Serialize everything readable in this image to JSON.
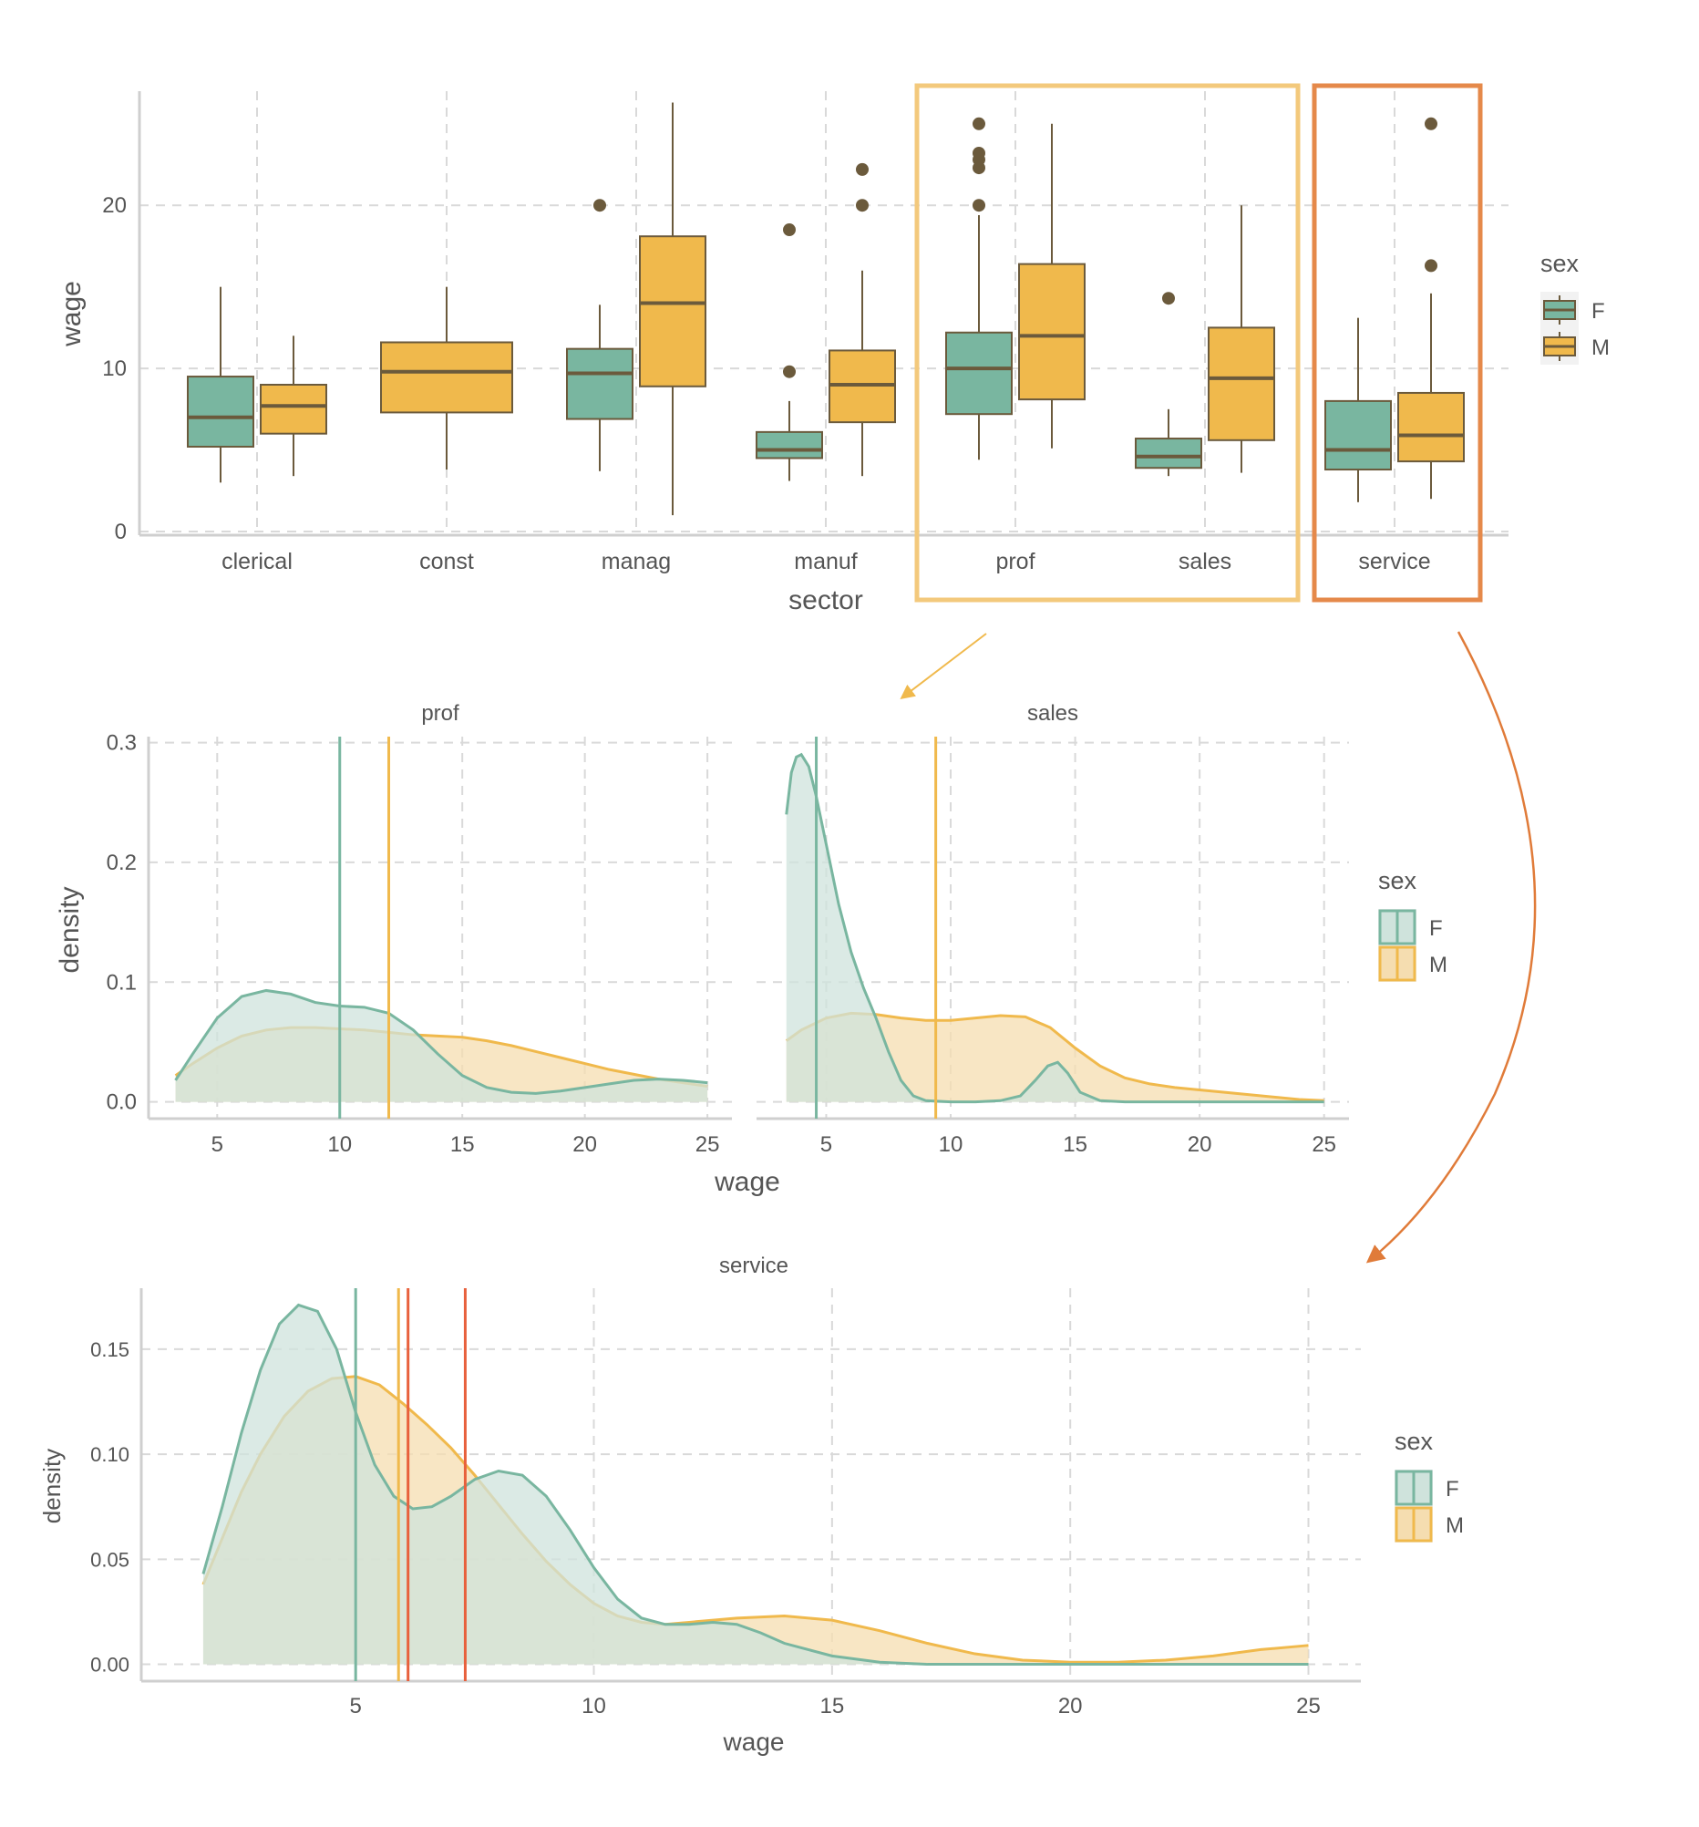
{
  "colors": {
    "F": "#79b6a0",
    "M": "#f0b94c",
    "box_stroke": "#6b5a3c",
    "outlier": "#6b5a3c",
    "grid": "#d9d9d9",
    "axis": "#cfcfcf",
    "text": "#555555",
    "highlight_light": "#f3c97c",
    "highlight_dark": "#e5894a",
    "arrow_light": "#f0b94c",
    "arrow_dark": "#e07b39",
    "service_mean_line": "#e8603c",
    "density_F_fill": "#cfe3dc",
    "density_M_fill": "#f5ddb0"
  },
  "chart_data": [
    {
      "id": "boxplot",
      "type": "box",
      "xlabel": "sector",
      "ylabel": "wage",
      "ylim": [
        0,
        27
      ],
      "yticks": [
        0,
        10,
        20
      ],
      "legend": {
        "title": "sex",
        "entries": [
          "F",
          "M"
        ],
        "position": "right"
      },
      "grid": true,
      "categories": [
        "clerical",
        "const",
        "manag",
        "manuf",
        "prof",
        "sales",
        "service"
      ],
      "boxes": [
        {
          "sector": "clerical",
          "sex": "F",
          "min": 3.0,
          "q1": 5.2,
          "median": 7.0,
          "q3": 9.5,
          "max": 15.0,
          "outliers": []
        },
        {
          "sector": "clerical",
          "sex": "M",
          "min": 3.4,
          "q1": 6.0,
          "median": 7.7,
          "q3": 9.0,
          "max": 12.0,
          "outliers": []
        },
        {
          "sector": "const",
          "sex": "M",
          "min": 3.8,
          "q1": 7.3,
          "median": 9.8,
          "q3": 11.6,
          "max": 15.0,
          "outliers": []
        },
        {
          "sector": "manag",
          "sex": "F",
          "min": 3.7,
          "q1": 6.9,
          "median": 9.7,
          "q3": 11.2,
          "max": 13.9,
          "outliers": [
            20.0
          ]
        },
        {
          "sector": "manag",
          "sex": "M",
          "min": 1.0,
          "q1": 8.9,
          "median": 14.0,
          "q3": 18.1,
          "max": 26.3,
          "outliers": []
        },
        {
          "sector": "manuf",
          "sex": "F",
          "min": 3.1,
          "q1": 4.5,
          "median": 5.0,
          "q3": 6.1,
          "max": 8.0,
          "outliers": [
            9.8,
            18.5
          ]
        },
        {
          "sector": "manuf",
          "sex": "M",
          "min": 3.4,
          "q1": 6.7,
          "median": 9.0,
          "q3": 11.1,
          "max": 16.0,
          "outliers": [
            20.0,
            22.2
          ]
        },
        {
          "sector": "prof",
          "sex": "F",
          "min": 4.4,
          "q1": 7.2,
          "median": 10.0,
          "q3": 12.2,
          "max": 19.4,
          "outliers": [
            20.0,
            22.3,
            22.8,
            23.2,
            25.0
          ]
        },
        {
          "sector": "prof",
          "sex": "M",
          "min": 5.1,
          "q1": 8.1,
          "median": 12.0,
          "q3": 16.4,
          "max": 25.0,
          "outliers": []
        },
        {
          "sector": "sales",
          "sex": "F",
          "min": 3.4,
          "q1": 3.9,
          "median": 4.6,
          "q3": 5.7,
          "max": 7.5,
          "outliers": [
            14.3
          ]
        },
        {
          "sector": "sales",
          "sex": "M",
          "min": 3.6,
          "q1": 5.6,
          "median": 9.4,
          "q3": 12.5,
          "max": 20.0,
          "outliers": []
        },
        {
          "sector": "service",
          "sex": "F",
          "min": 1.8,
          "q1": 3.8,
          "median": 5.0,
          "q3": 8.0,
          "max": 13.1,
          "outliers": []
        },
        {
          "sector": "service",
          "sex": "M",
          "min": 2.0,
          "q1": 4.3,
          "median": 5.9,
          "q3": 8.5,
          "max": 14.6,
          "outliers": [
            16.3,
            25.0
          ]
        }
      ],
      "highlights": [
        {
          "sectors": [
            "prof",
            "sales"
          ],
          "color": "light"
        },
        {
          "sectors": [
            "service"
          ],
          "color": "dark"
        }
      ]
    },
    {
      "id": "density-prof-sales",
      "type": "area",
      "xlabel": "wage",
      "ylabel": "density",
      "xlim": [
        2.2,
        26
      ],
      "ylim": [
        -0.014,
        0.305
      ],
      "xticks": [
        5,
        10,
        15,
        20,
        25
      ],
      "yticks": [
        0.0,
        0.1,
        0.2,
        0.3
      ],
      "ytick_labels": [
        "0.0",
        "0.1",
        "0.2",
        "0.3"
      ],
      "legend": {
        "title": "sex",
        "entries": [
          "F",
          "M"
        ],
        "position": "right"
      },
      "grid": true,
      "panels": [
        {
          "title": "prof",
          "series": [
            {
              "sex": "F",
              "x": [
                3.3,
                4,
                5,
                6,
                7,
                8,
                9,
                10,
                11,
                12,
                13,
                14,
                15,
                16,
                17,
                18,
                19,
                20,
                21,
                22,
                23,
                24,
                25
              ],
              "y": [
                0.018,
                0.04,
                0.07,
                0.088,
                0.093,
                0.09,
                0.083,
                0.08,
                0.079,
                0.074,
                0.06,
                0.04,
                0.022,
                0.012,
                0.008,
                0.007,
                0.009,
                0.012,
                0.015,
                0.018,
                0.019,
                0.018,
                0.016
              ]
            },
            {
              "sex": "M",
              "x": [
                3.3,
                4,
                5,
                6,
                7,
                8,
                9,
                10,
                11,
                12,
                13,
                14,
                15,
                16,
                17,
                18,
                19,
                20,
                21,
                22,
                23,
                24,
                25
              ],
              "y": [
                0.022,
                0.032,
                0.045,
                0.055,
                0.06,
                0.062,
                0.062,
                0.061,
                0.06,
                0.058,
                0.056,
                0.055,
                0.054,
                0.051,
                0.047,
                0.042,
                0.037,
                0.032,
                0.027,
                0.023,
                0.019,
                0.016,
                0.013
              ]
            }
          ],
          "vlines": [
            {
              "sex": "F",
              "x": 10.0
            },
            {
              "sex": "M",
              "x": 12.0
            }
          ]
        },
        {
          "title": "sales",
          "series": [
            {
              "sex": "F",
              "x": [
                3.4,
                3.6,
                3.8,
                4,
                4.3,
                4.6,
                5,
                5.5,
                6,
                6.5,
                7,
                7.5,
                8,
                8.5,
                9,
                10,
                11,
                12,
                12.8,
                13.4,
                13.9,
                14.3,
                14.7,
                15.2,
                16,
                17,
                25
              ],
              "y": [
                0.24,
                0.275,
                0.288,
                0.29,
                0.28,
                0.255,
                0.215,
                0.165,
                0.125,
                0.095,
                0.07,
                0.042,
                0.018,
                0.005,
                0.001,
                0,
                0,
                0.001,
                0.005,
                0.018,
                0.03,
                0.033,
                0.024,
                0.008,
                0.001,
                0,
                0
              ]
            },
            {
              "sex": "M",
              "x": [
                3.4,
                4,
                5,
                6,
                7,
                8,
                9,
                10,
                11,
                12,
                13,
                14,
                15,
                16,
                17,
                18,
                19,
                20,
                21,
                22,
                23,
                24,
                25
              ],
              "y": [
                0.051,
                0.06,
                0.07,
                0.074,
                0.073,
                0.07,
                0.068,
                0.068,
                0.07,
                0.072,
                0.071,
                0.062,
                0.045,
                0.03,
                0.02,
                0.015,
                0.012,
                0.01,
                0.008,
                0.006,
                0.004,
                0.002,
                0.001
              ]
            }
          ],
          "vlines": [
            {
              "sex": "F",
              "x": 4.6
            },
            {
              "sex": "M",
              "x": 9.4
            }
          ]
        }
      ]
    },
    {
      "id": "density-service",
      "type": "area",
      "title": "service",
      "xlabel": "wage",
      "ylabel": "density",
      "xlim": [
        0.5,
        26.1
      ],
      "ylim": [
        -0.008,
        0.179
      ],
      "xticks": [
        5,
        10,
        15,
        20,
        25
      ],
      "yticks": [
        0.0,
        0.05,
        0.1,
        0.15
      ],
      "ytick_labels": [
        "0.00",
        "0.05",
        "0.10",
        "0.15"
      ],
      "legend": {
        "title": "sex",
        "entries": [
          "F",
          "M"
        ],
        "position": "right"
      },
      "grid": true,
      "series": [
        {
          "sex": "F",
          "x": [
            1.8,
            2.2,
            2.6,
            3,
            3.4,
            3.8,
            4.2,
            4.6,
            5,
            5.4,
            5.8,
            6.2,
            6.6,
            7,
            7.5,
            8,
            8.5,
            9,
            9.5,
            10,
            10.5,
            11,
            11.5,
            12,
            12.5,
            13,
            13.5,
            14,
            15,
            16,
            17,
            18,
            20,
            22,
            25
          ],
          "y": [
            0.043,
            0.075,
            0.11,
            0.14,
            0.162,
            0.171,
            0.168,
            0.15,
            0.12,
            0.095,
            0.08,
            0.074,
            0.075,
            0.08,
            0.088,
            0.092,
            0.09,
            0.08,
            0.064,
            0.046,
            0.031,
            0.022,
            0.019,
            0.019,
            0.02,
            0.019,
            0.015,
            0.01,
            0.004,
            0.001,
            0,
            0,
            0,
            0,
            0
          ]
        },
        {
          "sex": "M",
          "x": [
            1.8,
            2.2,
            2.6,
            3,
            3.5,
            4,
            4.5,
            5,
            5.5,
            6,
            6.5,
            7,
            7.5,
            8,
            8.5,
            9,
            9.5,
            10,
            10.5,
            11,
            11.5,
            12,
            13,
            14,
            15,
            16,
            17,
            18,
            19,
            20,
            21,
            22,
            23,
            24,
            25
          ],
          "y": [
            0.038,
            0.06,
            0.082,
            0.1,
            0.118,
            0.13,
            0.136,
            0.137,
            0.133,
            0.124,
            0.114,
            0.103,
            0.09,
            0.076,
            0.062,
            0.049,
            0.038,
            0.029,
            0.023,
            0.02,
            0.019,
            0.02,
            0.022,
            0.023,
            0.021,
            0.016,
            0.01,
            0.005,
            0.002,
            0.001,
            0.001,
            0.002,
            0.004,
            0.007,
            0.009
          ]
        }
      ],
      "vlines": [
        {
          "sex": "F",
          "x": 5.0
        },
        {
          "sex": "M",
          "x": 5.9
        },
        {
          "sex": "red",
          "x": 6.1
        },
        {
          "sex": "red",
          "x": 7.3
        }
      ]
    }
  ]
}
